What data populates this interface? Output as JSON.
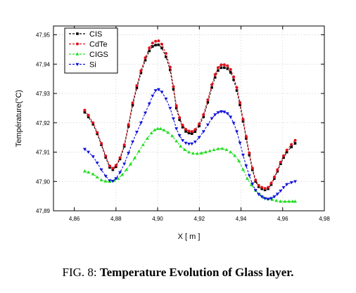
{
  "caption": {
    "prefix": "FIG. 8: ",
    "title": "Temperature Evolution of Glass layer."
  },
  "chart_data": {
    "type": "line",
    "xlabel": "X [ m ]",
    "ylabel": "Température(°C)",
    "xlim": [
      4.85,
      4.98
    ],
    "ylim": [
      47.89,
      47.953
    ],
    "xticks": [
      4.86,
      4.88,
      4.9,
      4.92,
      4.94,
      4.96,
      4.98
    ],
    "xtick_labels": [
      "4,86",
      "4,88",
      "4,90",
      "4,92",
      "4,94",
      "4,96",
      "4,98"
    ],
    "yticks": [
      47.89,
      47.9,
      47.91,
      47.92,
      47.93,
      47.94,
      47.95
    ],
    "ytick_labels": [
      "47,89",
      "47,90",
      "47,91",
      "47,92",
      "47,93",
      "47,94",
      "47,95"
    ],
    "grid": true,
    "legend_position": "top-left",
    "series": [
      {
        "name": "CIS",
        "color": "#000000",
        "marker": "square",
        "points": [
          [
            4.865,
            47.9236
          ],
          [
            4.869,
            47.9195
          ],
          [
            4.873,
            47.9125
          ],
          [
            4.877,
            47.9048
          ],
          [
            4.88,
            47.905
          ],
          [
            4.884,
            47.912
          ],
          [
            4.888,
            47.926
          ],
          [
            4.892,
            47.937
          ],
          [
            4.896,
            47.9445
          ],
          [
            4.899,
            47.9465
          ],
          [
            4.902,
            47.9455
          ],
          [
            4.906,
            47.938
          ],
          [
            4.909,
            47.925
          ],
          [
            4.912,
            47.9185
          ],
          [
            4.915,
            47.9165
          ],
          [
            4.918,
            47.917
          ],
          [
            4.922,
            47.922
          ],
          [
            4.926,
            47.932
          ],
          [
            4.929,
            47.9378
          ],
          [
            4.932,
            47.9388
          ],
          [
            4.935,
            47.9372
          ],
          [
            4.938,
            47.931
          ],
          [
            4.941,
            47.9205
          ],
          [
            4.944,
            47.909
          ],
          [
            4.947,
            47.9
          ],
          [
            4.95,
            47.8975
          ],
          [
            4.953,
            47.8975
          ],
          [
            4.956,
            47.901
          ],
          [
            4.959,
            47.906
          ],
          [
            4.962,
            47.91
          ],
          [
            4.966,
            47.913
          ]
        ]
      },
      {
        "name": "CdTe",
        "color": "#e0101c",
        "marker": "circle",
        "points": [
          [
            4.865,
            47.9243
          ],
          [
            4.869,
            47.92
          ],
          [
            4.873,
            47.913
          ],
          [
            4.877,
            47.9053
          ],
          [
            4.88,
            47.9055
          ],
          [
            4.884,
            47.9125
          ],
          [
            4.888,
            47.9268
          ],
          [
            4.892,
            47.9378
          ],
          [
            4.896,
            47.9455
          ],
          [
            4.899,
            47.9478
          ],
          [
            4.902,
            47.9468
          ],
          [
            4.906,
            47.939
          ],
          [
            4.909,
            47.9258
          ],
          [
            4.912,
            47.9192
          ],
          [
            4.915,
            47.9172
          ],
          [
            4.918,
            47.9177
          ],
          [
            4.922,
            47.9228
          ],
          [
            4.926,
            47.933
          ],
          [
            4.929,
            47.9388
          ],
          [
            4.932,
            47.9398
          ],
          [
            4.935,
            47.9382
          ],
          [
            4.938,
            47.932
          ],
          [
            4.941,
            47.9212
          ],
          [
            4.944,
            47.9097
          ],
          [
            4.947,
            47.9005
          ],
          [
            4.95,
            47.898
          ],
          [
            4.953,
            47.898
          ],
          [
            4.956,
            47.9015
          ],
          [
            4.959,
            47.9066
          ],
          [
            4.962,
            47.9107
          ],
          [
            4.966,
            47.914
          ]
        ]
      },
      {
        "name": "CIGS",
        "color": "#22dd22",
        "marker": "triangle-up",
        "points": [
          [
            4.865,
            47.9035
          ],
          [
            4.869,
            47.9025
          ],
          [
            4.873,
            47.9005
          ],
          [
            4.877,
            47.9
          ],
          [
            4.881,
            47.901
          ],
          [
            4.885,
            47.904
          ],
          [
            4.889,
            47.908
          ],
          [
            4.893,
            47.9125
          ],
          [
            4.897,
            47.9165
          ],
          [
            4.9,
            47.918
          ],
          [
            4.903,
            47.9175
          ],
          [
            4.907,
            47.9155
          ],
          [
            4.911,
            47.912
          ],
          [
            4.915,
            47.91
          ],
          [
            4.919,
            47.9095
          ],
          [
            4.923,
            47.91
          ],
          [
            4.927,
            47.9108
          ],
          [
            4.931,
            47.9112
          ],
          [
            4.935,
            47.91
          ],
          [
            4.939,
            47.907
          ],
          [
            4.943,
            47.901
          ],
          [
            4.947,
            47.897
          ],
          [
            4.951,
            47.8945
          ],
          [
            4.955,
            47.8938
          ],
          [
            4.959,
            47.8932
          ],
          [
            4.963,
            47.8932
          ],
          [
            4.966,
            47.8932
          ]
        ]
      },
      {
        "name": "Si",
        "color": "#1010dd",
        "marker": "triangle-down",
        "points": [
          [
            4.865,
            47.911
          ],
          [
            4.869,
            47.9085
          ],
          [
            4.873,
            47.904
          ],
          [
            4.877,
            47.9003
          ],
          [
            4.88,
            47.901
          ],
          [
            4.884,
            47.906
          ],
          [
            4.888,
            47.9135
          ],
          [
            4.892,
            47.92
          ],
          [
            4.896,
            47.9265
          ],
          [
            4.899,
            47.931
          ],
          [
            4.902,
            47.9305
          ],
          [
            4.906,
            47.925
          ],
          [
            4.909,
            47.918
          ],
          [
            4.912,
            47.914
          ],
          [
            4.915,
            47.9128
          ],
          [
            4.918,
            47.9135
          ],
          [
            4.922,
            47.917
          ],
          [
            4.926,
            47.9215
          ],
          [
            4.929,
            47.9235
          ],
          [
            4.932,
            47.9237
          ],
          [
            4.935,
            47.922
          ],
          [
            4.938,
            47.917
          ],
          [
            4.941,
            47.909
          ],
          [
            4.944,
            47.902
          ],
          [
            4.947,
            47.897
          ],
          [
            4.95,
            47.8948
          ],
          [
            4.953,
            47.894
          ],
          [
            4.956,
            47.8948
          ],
          [
            4.959,
            47.8968
          ],
          [
            4.962,
            47.899
          ],
          [
            4.966,
            47.9
          ]
        ]
      }
    ]
  }
}
